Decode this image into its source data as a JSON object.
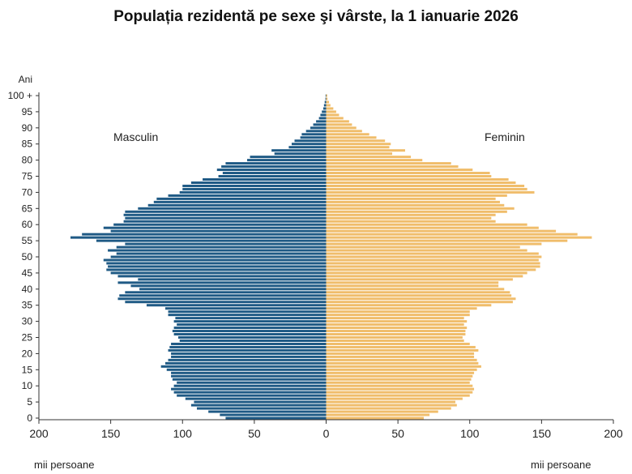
{
  "chart_data": {
    "type": "bar",
    "orientation": "horizontal-population-pyramid",
    "title": "Populația rezidentă pe sexe şi vârste, la 1 ianuarie 2026",
    "ylabel": "Ani",
    "unit_label_left": "mii persoane",
    "unit_label_right": "mii persoane",
    "xlim": [
      -200,
      200
    ],
    "x_ticks": [
      -200,
      -150,
      -100,
      -50,
      0,
      50,
      100,
      150,
      200
    ],
    "x_tick_labels": [
      "200",
      "150",
      "100",
      "50",
      "0",
      "50",
      "100",
      "150",
      "200"
    ],
    "y_ticks": [
      0,
      5,
      10,
      15,
      20,
      25,
      30,
      35,
      40,
      45,
      50,
      55,
      60,
      65,
      70,
      75,
      80,
      85,
      90,
      95,
      100
    ],
    "y_tick_labels": [
      "0",
      "5",
      "10",
      "15",
      "20",
      "25",
      "30",
      "35",
      "40",
      "45",
      "50",
      "55",
      "60",
      "65",
      "70",
      "75",
      "80",
      "85",
      "90",
      "95",
      "100 +"
    ],
    "grid": false,
    "colors": {
      "male": "#1f5a85",
      "female": "#f0bd6b",
      "axis": "#333333"
    },
    "series": [
      {
        "name": "Masculin",
        "ages": [
          0,
          1,
          2,
          3,
          4,
          5,
          6,
          7,
          8,
          9,
          10,
          11,
          12,
          13,
          14,
          15,
          16,
          17,
          18,
          19,
          20,
          21,
          22,
          23,
          24,
          25,
          26,
          27,
          28,
          29,
          30,
          31,
          32,
          33,
          34,
          35,
          36,
          37,
          38,
          39,
          40,
          41,
          42,
          43,
          44,
          45,
          46,
          47,
          48,
          49,
          50,
          51,
          52,
          53,
          54,
          55,
          56,
          57,
          58,
          59,
          60,
          61,
          62,
          63,
          64,
          65,
          66,
          67,
          68,
          69,
          70,
          71,
          72,
          73,
          74,
          75,
          76,
          77,
          78,
          79,
          80,
          81,
          82,
          83,
          84,
          85,
          86,
          87,
          88,
          89,
          90,
          91,
          92,
          93,
          94,
          95,
          96,
          97,
          98,
          99,
          100
        ],
        "values": [
          70,
          74,
          82,
          90,
          94,
          92,
          98,
          104,
          106,
          108,
          106,
          104,
          107,
          108,
          108,
          111,
          115,
          112,
          110,
          108,
          108,
          110,
          109,
          108,
          102,
          103,
          106,
          107,
          106,
          104,
          106,
          105,
          110,
          110,
          112,
          125,
          140,
          145,
          144,
          140,
          130,
          136,
          145,
          131,
          145,
          150,
          153,
          152,
          153,
          155,
          150,
          146,
          152,
          146,
          140,
          160,
          178,
          170,
          150,
          155,
          148,
          141,
          140,
          141,
          140,
          131,
          124,
          120,
          118,
          110,
          102,
          100,
          100,
          94,
          86,
          75,
          72,
          76,
          73,
          70,
          55,
          53,
          36,
          38,
          26,
          24,
          22,
          18,
          17,
          14,
          11,
          9,
          7,
          5,
          4,
          3,
          2,
          1.5,
          1,
          0.5,
          0.4
        ]
      },
      {
        "name": "Feminin",
        "ages": [
          0,
          1,
          2,
          3,
          4,
          5,
          6,
          7,
          8,
          9,
          10,
          11,
          12,
          13,
          14,
          15,
          16,
          17,
          18,
          19,
          20,
          21,
          22,
          23,
          24,
          25,
          26,
          27,
          28,
          29,
          30,
          31,
          32,
          33,
          34,
          35,
          36,
          37,
          38,
          39,
          40,
          41,
          42,
          43,
          44,
          45,
          46,
          47,
          48,
          49,
          50,
          51,
          52,
          53,
          54,
          55,
          56,
          57,
          58,
          59,
          60,
          61,
          62,
          63,
          64,
          65,
          66,
          67,
          68,
          69,
          70,
          71,
          72,
          73,
          74,
          75,
          76,
          77,
          78,
          79,
          80,
          81,
          82,
          83,
          84,
          85,
          86,
          87,
          88,
          89,
          90,
          91,
          92,
          93,
          94,
          95,
          96,
          97,
          98,
          99,
          100
        ],
        "values": [
          68,
          72,
          78,
          87,
          91,
          90,
          95,
          100,
          102,
          103,
          102,
          100,
          101,
          102,
          103,
          105,
          108,
          106,
          105,
          103,
          103,
          106,
          104,
          100,
          96,
          95,
          97,
          97,
          98,
          96,
          98,
          96,
          100,
          100,
          105,
          115,
          130,
          132,
          129,
          128,
          124,
          120,
          120,
          130,
          137,
          140,
          146,
          149,
          149,
          148,
          150,
          148,
          140,
          135,
          150,
          168,
          185,
          175,
          160,
          148,
          140,
          118,
          115,
          118,
          126,
          131,
          124,
          121,
          118,
          126,
          145,
          140,
          138,
          132,
          127,
          115,
          114,
          102,
          92,
          87,
          67,
          59,
          46,
          55,
          44,
          45,
          41,
          35,
          30,
          25,
          21,
          18,
          16,
          12,
          9,
          7,
          5,
          3,
          2,
          1,
          0.8
        ]
      }
    ]
  }
}
